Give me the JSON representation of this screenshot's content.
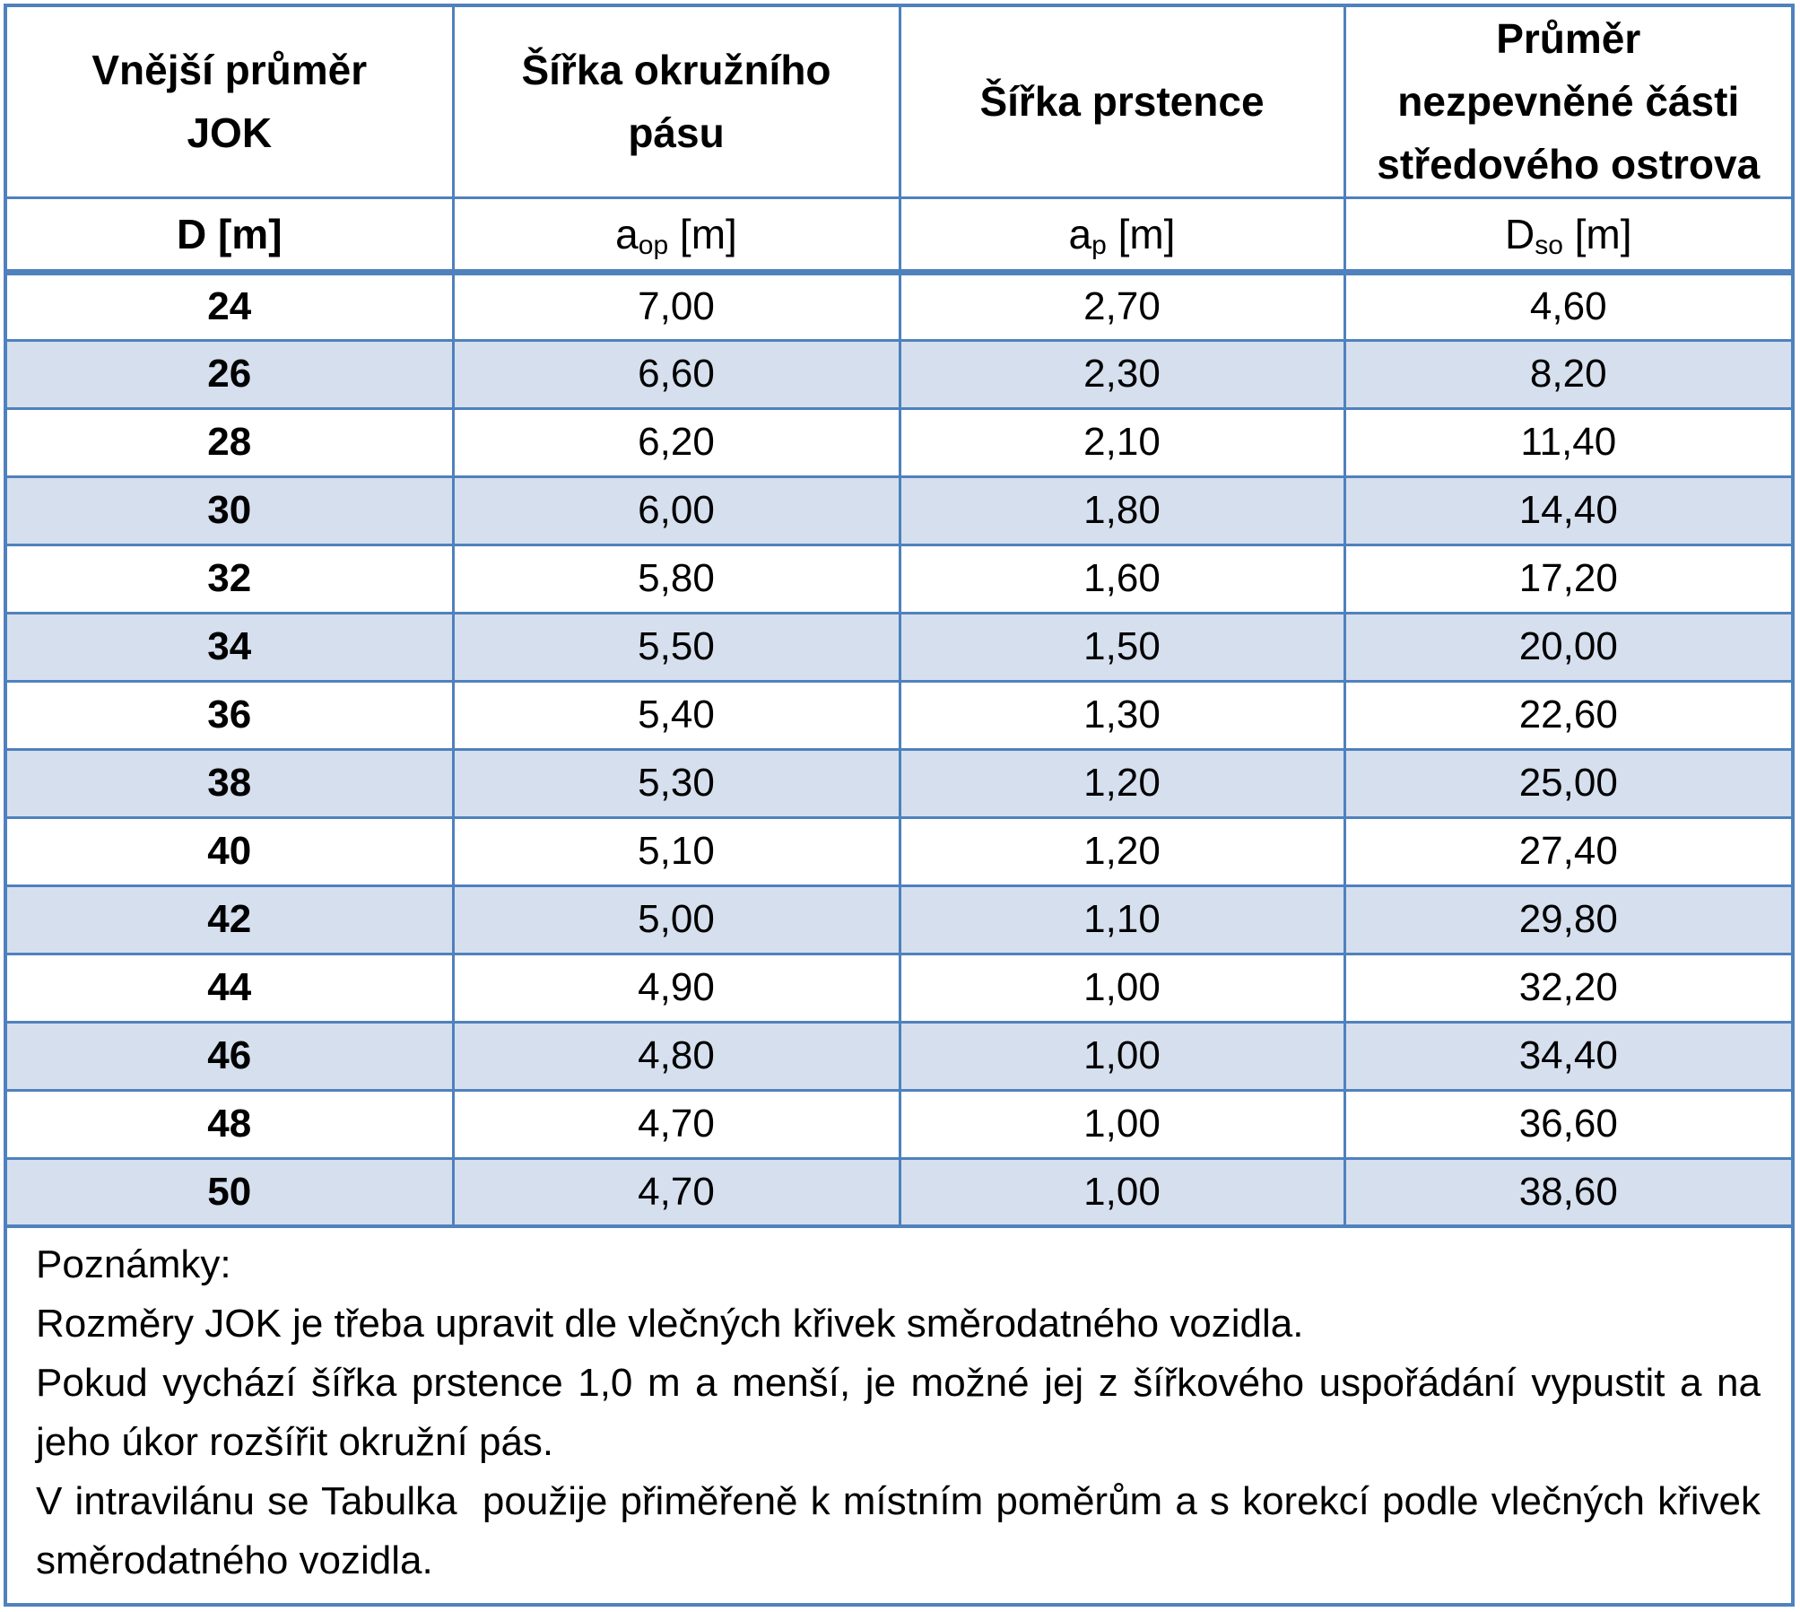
{
  "table": {
    "headers": [
      [
        "Vnější průměr",
        "JOK"
      ],
      [
        "Šířka okružního",
        "pásu"
      ],
      [
        "Šířka prstence"
      ],
      [
        "Průměr",
        "nezpevněné části",
        "středového ostrova"
      ]
    ],
    "units": [
      {
        "main": "D",
        "sub": "",
        "unit": " [m]"
      },
      {
        "main": "a",
        "sub": "op",
        "unit": " [m]"
      },
      {
        "main": "a",
        "sub": "p",
        "unit": " [m]"
      },
      {
        "main": "D",
        "sub": "so",
        "unit": " [m]"
      }
    ],
    "rows": [
      [
        "24",
        "7,00",
        "2,70",
        "4,60"
      ],
      [
        "26",
        "6,60",
        "2,30",
        "8,20"
      ],
      [
        "28",
        "6,20",
        "2,10",
        "11,40"
      ],
      [
        "30",
        "6,00",
        "1,80",
        "14,40"
      ],
      [
        "32",
        "5,80",
        "1,60",
        "17,20"
      ],
      [
        "34",
        "5,50",
        "1,50",
        "20,00"
      ],
      [
        "36",
        "5,40",
        "1,30",
        "22,60"
      ],
      [
        "38",
        "5,30",
        "1,20",
        "25,00"
      ],
      [
        "40",
        "5,10",
        "1,20",
        "27,40"
      ],
      [
        "42",
        "5,00",
        "1,10",
        "29,80"
      ],
      [
        "44",
        "4,90",
        "1,00",
        "32,20"
      ],
      [
        "46",
        "4,80",
        "1,00",
        "34,40"
      ],
      [
        "48",
        "4,70",
        "1,00",
        "36,60"
      ],
      [
        "50",
        "4,70",
        "1,00",
        "38,60"
      ]
    ]
  },
  "notes": {
    "title": "Poznámky:",
    "note1": "Rozměry JOK je třeba upravit dle vlečných křivek směrodatného vozidla.",
    "note2": "Pokud vychází šířka prstence 1,0 m a menší, je možné jej z šířkového uspořádání vypustit a na jeho úkor rozšířit okružní pás.",
    "note3": "V intravilánu se Tabulka  použije přiměřeně k místním poměrům a s korekcí podle vlečných křivek směrodatného vozidla."
  },
  "colors": {
    "border": "#4f81bd",
    "alt_row": "#d5dfee"
  }
}
